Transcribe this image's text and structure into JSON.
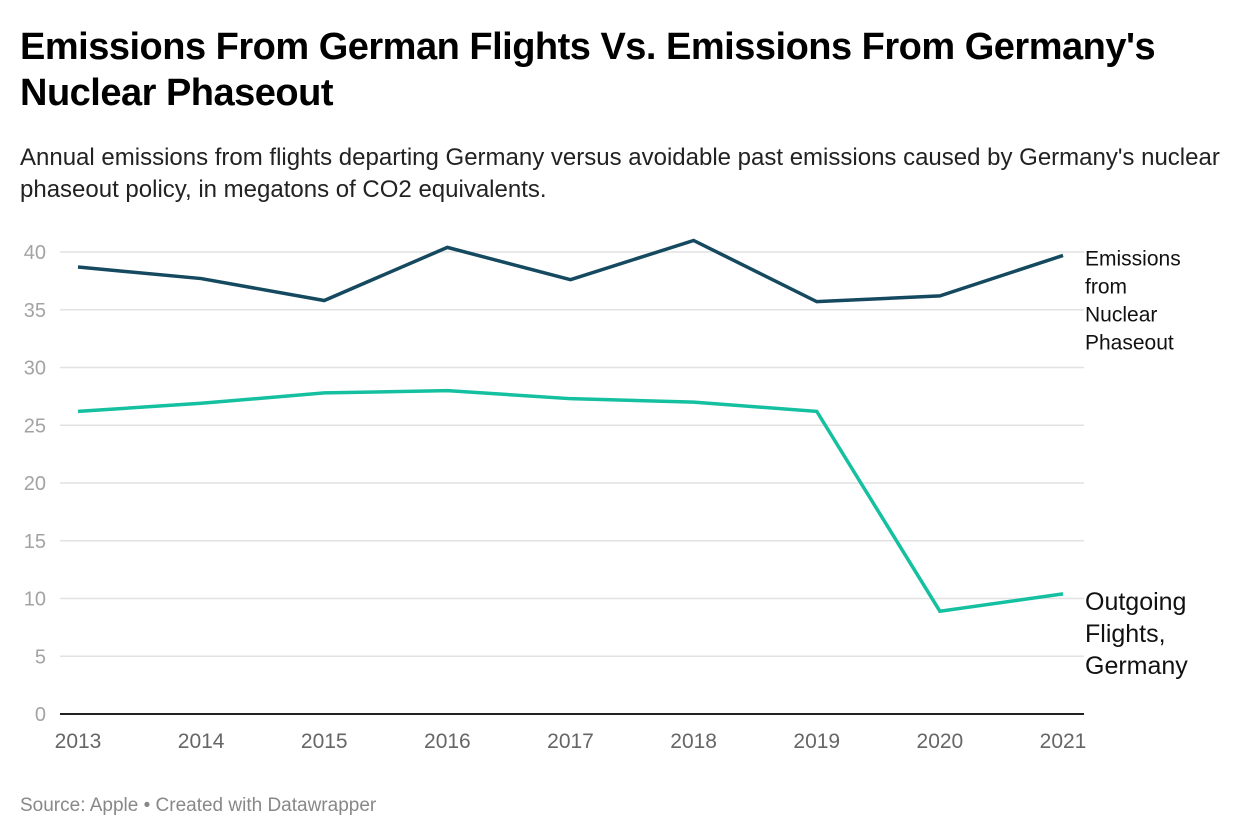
{
  "header": {
    "title": "Emissions From German Flights Vs. Emissions From Germany's Nuclear Phaseout",
    "subtitle": "Annual emissions from flights departing Germany versus avoidable past emissions caused by Germany's nuclear phaseout policy, in megatons of CO2 equivalents."
  },
  "footer": {
    "source": "Source: Apple • Created with Datawrapper"
  },
  "chart_data": {
    "type": "line",
    "title": "Emissions From German Flights Vs. Emissions From Germany's Nuclear Phaseout",
    "subtitle": "Annual emissions from flights departing Germany versus avoidable past emissions caused by Germany's nuclear phaseout policy, in megatons of CO2 equivalents.",
    "xlabel": "",
    "ylabel": "",
    "x": [
      "2013",
      "2014",
      "2015",
      "2016",
      "2017",
      "2018",
      "2019",
      "2020",
      "2021"
    ],
    "ylim": [
      0,
      40
    ],
    "yticks": [
      0,
      5,
      10,
      15,
      20,
      25,
      30,
      35,
      40
    ],
    "grid": true,
    "legend": "direct labels at right",
    "series": [
      {
        "name": "Emissions from Nuclear Phaseout",
        "label_lines": [
          "Emissions",
          "from",
          "Nuclear",
          "Phaseout"
        ],
        "color": "#15495f",
        "values": [
          38.7,
          37.7,
          35.8,
          40.4,
          37.6,
          41.0,
          35.7,
          36.2,
          39.7
        ]
      },
      {
        "name": "Outgoing Flights, Germany",
        "label_lines": [
          "Outgoing",
          "Flights,",
          "Germany"
        ],
        "color": "#15c0a0",
        "values": [
          26.2,
          26.9,
          27.8,
          28.0,
          27.3,
          27.0,
          26.2,
          8.9,
          10.4
        ]
      }
    ],
    "source": "Source: Apple • Created with Datawrapper"
  }
}
